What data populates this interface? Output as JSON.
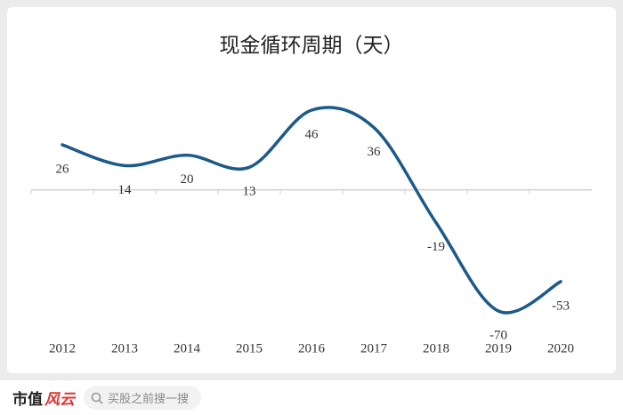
{
  "chart_data": {
    "type": "line",
    "title": "现金循环周期（天）",
    "categories": [
      "2012",
      "2013",
      "2014",
      "2015",
      "2016",
      "2017",
      "2018",
      "2019",
      "2020"
    ],
    "values": [
      26,
      14,
      20,
      13,
      46,
      36,
      -19,
      -70,
      -53
    ],
    "color": "#1c5a8a",
    "data_labels": true
  },
  "footer": {
    "brand": "市值",
    "brand_mark": "风云",
    "search": "买股之前搜一搜"
  }
}
